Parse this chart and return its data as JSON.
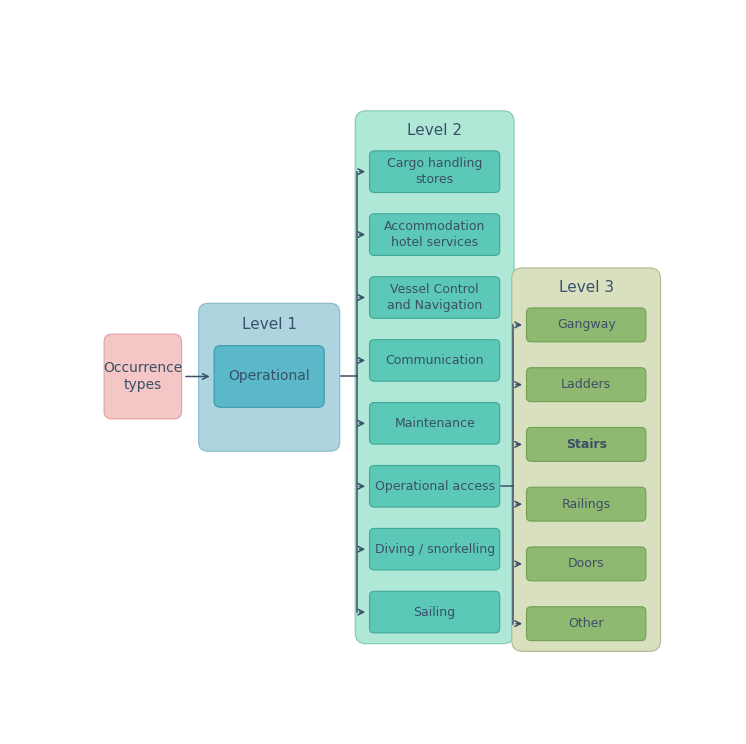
{
  "occurrence_types_label": "Occurrence\ntypes",
  "occurrence_types_color": "#f5c6c6",
  "occurrence_types_border": "#e0a0a0",
  "level1_bg_color": "#aed4e0",
  "level1_bg_border": "#88b8c8",
  "level1_label": "Level 1",
  "level1_inner_color": "#5ab8c8",
  "level1_inner_border": "#3898a8",
  "level1_item": "Operational",
  "level2_bg_color": "#b0e8d8",
  "level2_bg_border": "#80c8b0",
  "level2_label": "Level 2",
  "level2_item_color": "#5cc8b8",
  "level2_item_border": "#40a898",
  "level2_items": [
    "Cargo handling\nstores",
    "Accommodation\nhotel services",
    "Vessel Control\nand Navigation",
    "Communication",
    "Maintenance",
    "Operational access",
    "Diving / snorkelling",
    "Sailing"
  ],
  "level3_bg_color": "#d8e0c0",
  "level3_bg_border": "#b0b890",
  "level3_label": "Level 3",
  "level3_item_color": "#8fb870",
  "level3_item_border": "#70a050",
  "level3_items": [
    "Gangway",
    "Ladders",
    "Stairs",
    "Railings",
    "Doors",
    "Other"
  ],
  "arrow_color": "#3a5068",
  "text_dark": "#3a5068",
  "text_white": "#ffffff",
  "font_size": 9,
  "label_font_size": 11,
  "background_color": "#ffffff"
}
